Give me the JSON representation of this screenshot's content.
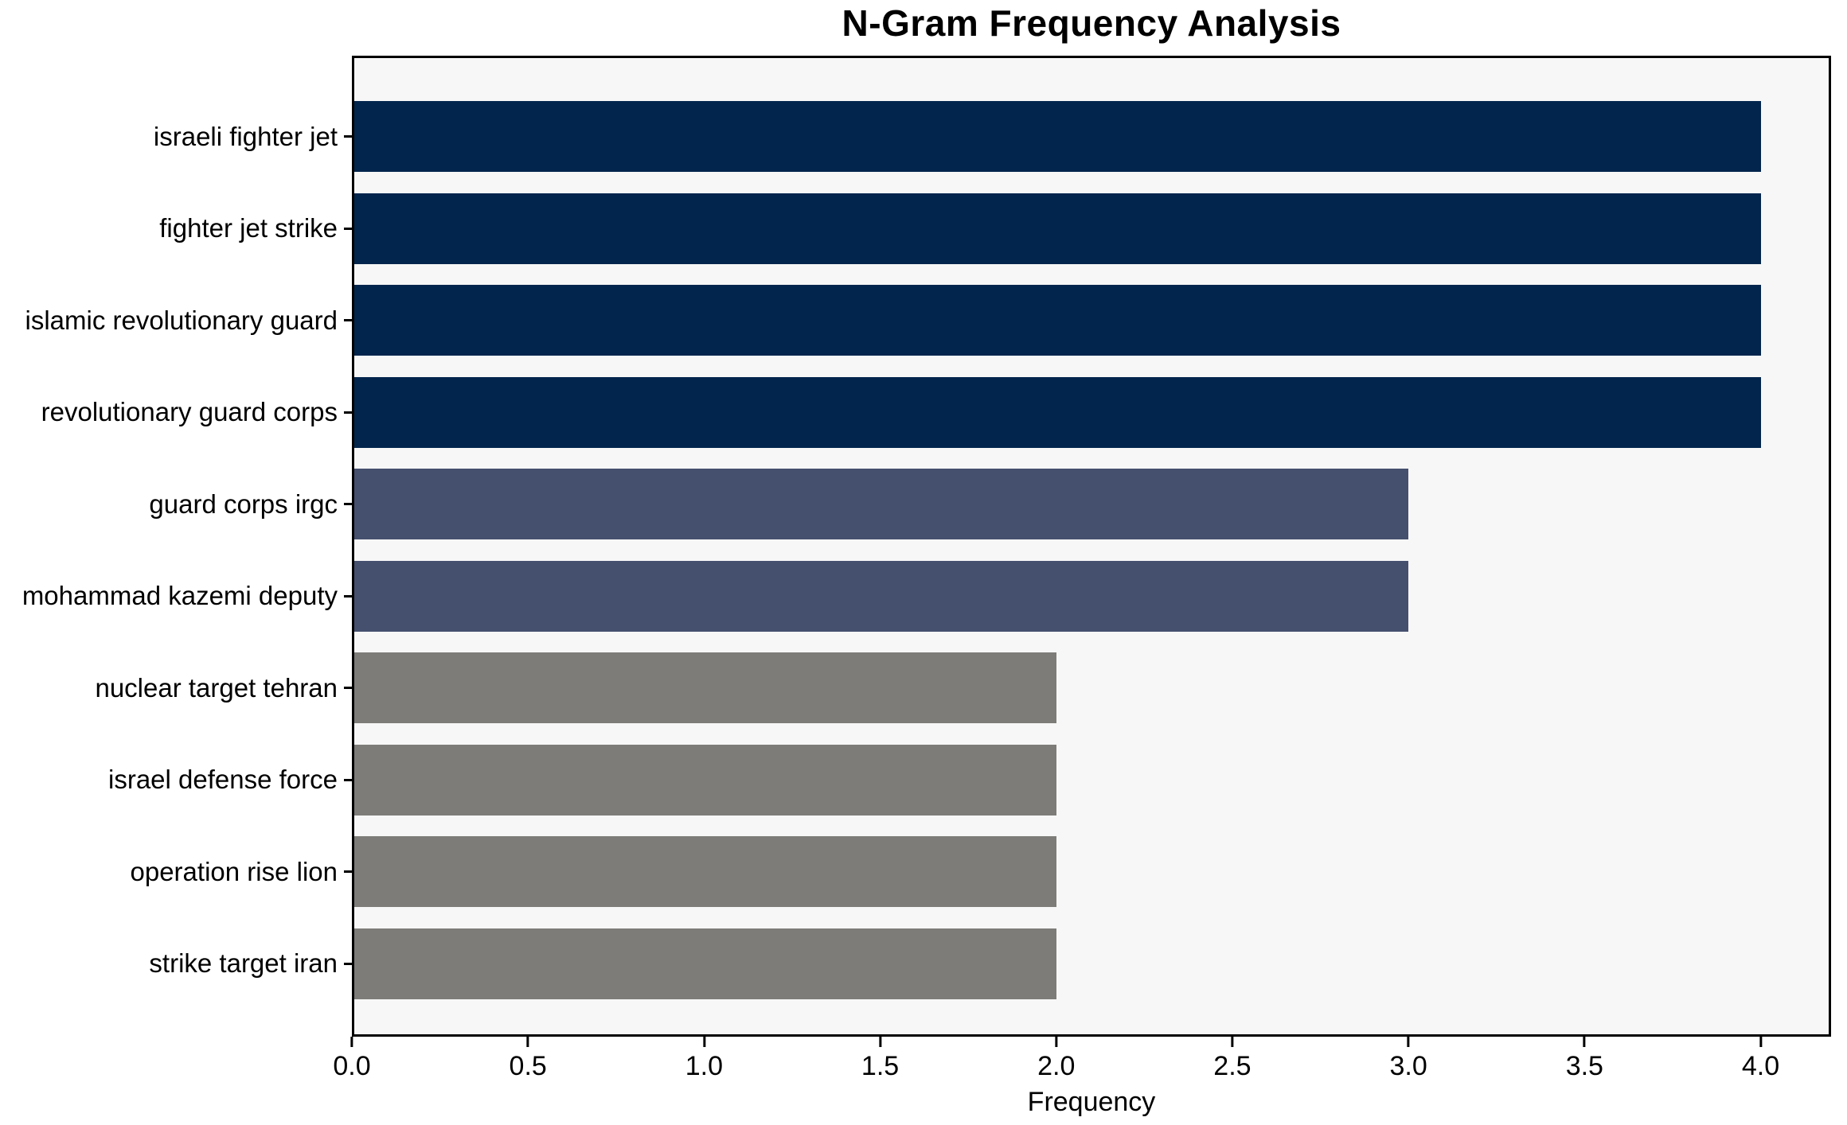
{
  "chart_data": {
    "type": "bar",
    "orientation": "horizontal",
    "title": "N-Gram Frequency Analysis",
    "xlabel": "Frequency",
    "ylabel": "",
    "xlim": [
      0,
      4.2
    ],
    "xticks": [
      0,
      0.5,
      1,
      1.5,
      2,
      2.5,
      3,
      3.5,
      4
    ],
    "xtick_labels": [
      "0.0",
      "0.5",
      "1.0",
      "1.5",
      "2.0",
      "2.5",
      "3.0",
      "3.5",
      "4.0"
    ],
    "categories": [
      "israeli fighter jet",
      "fighter jet strike",
      "islamic revolutionary guard",
      "revolutionary guard corps",
      "guard corps irgc",
      "mohammad kazemi deputy",
      "nuclear target tehran",
      "israel defense force",
      "operation rise lion",
      "strike target iran"
    ],
    "values": [
      4,
      4,
      4,
      4,
      3,
      3,
      2,
      2,
      2,
      2
    ],
    "bar_colors": [
      "#02254d",
      "#02254d",
      "#02254d",
      "#02254d",
      "#45506f",
      "#45506f",
      "#7d7c79",
      "#7d7c79",
      "#7d7c79",
      "#7d7c79"
    ],
    "grid": false,
    "legend": null,
    "plot_background": "#f7f7f7",
    "figure_background": "#ffffff",
    "spine_color": "#000000"
  }
}
